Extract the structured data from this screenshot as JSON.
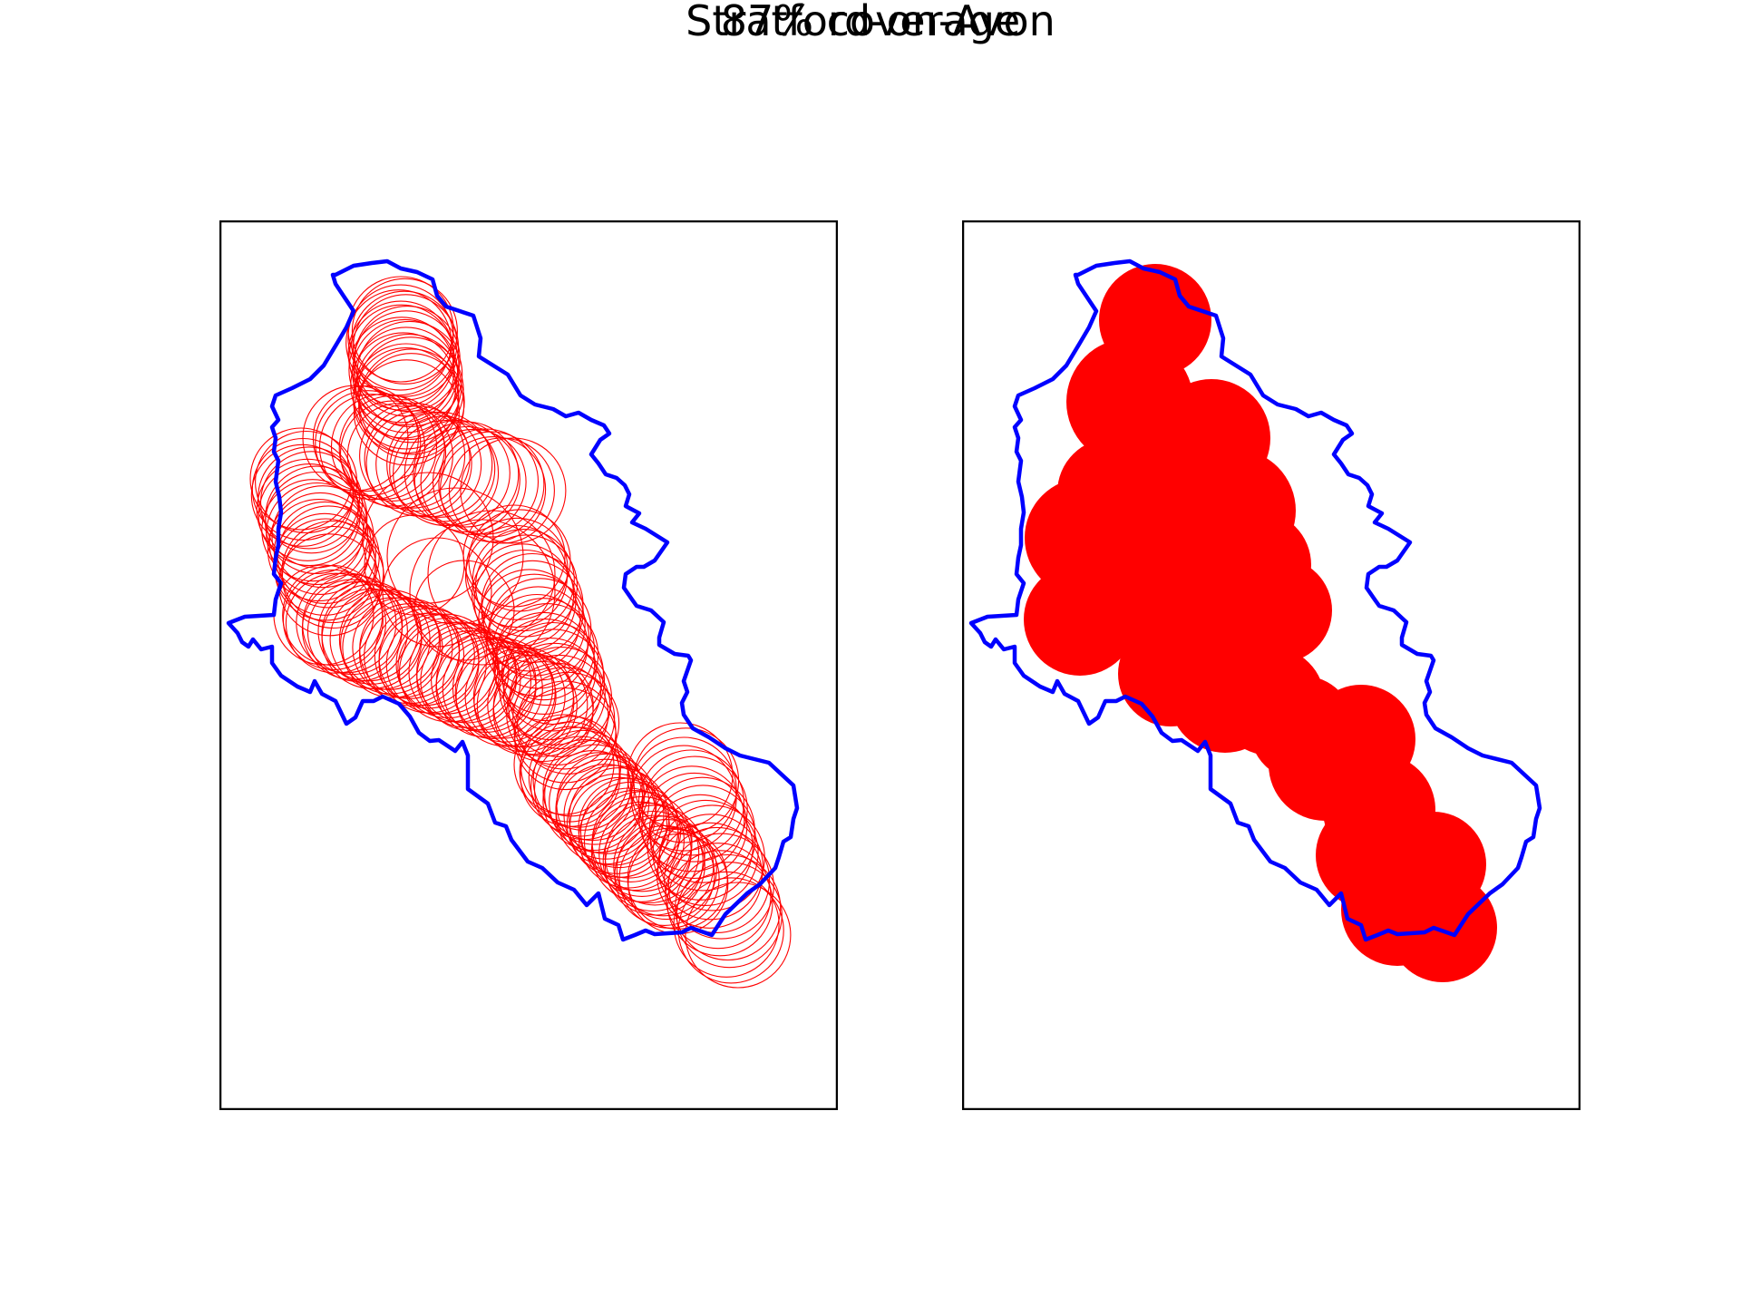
{
  "figure": {
    "title": "Stratford-on-Avon",
    "subtitle": "87% coverage"
  },
  "colors": {
    "boundary": "#0000ff",
    "coverage": "#ff0000",
    "frame": "#000000",
    "background": "#ffffff"
  },
  "panels": [
    {
      "name": "outline-circles-panel",
      "style": "outline"
    },
    {
      "name": "filled-circles-panel",
      "style": "filled"
    }
  ]
}
